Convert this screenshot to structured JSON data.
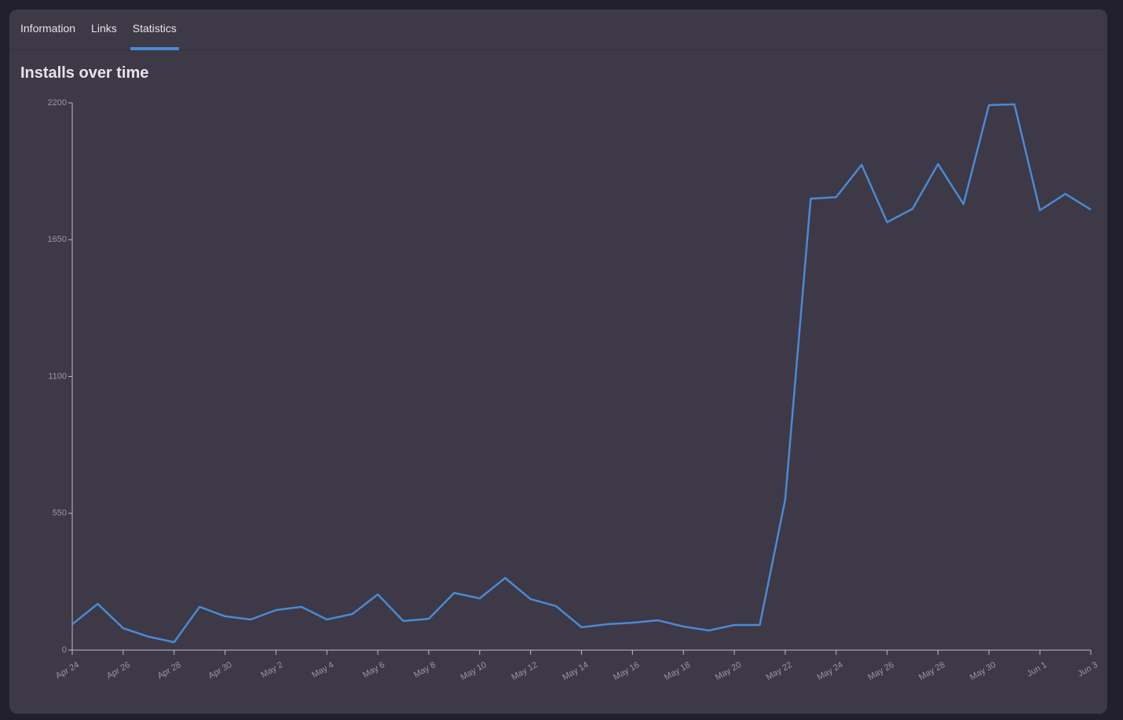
{
  "tabs": [
    "Information",
    "Links",
    "Statistics"
  ],
  "active_tab": 2,
  "chart_data": {
    "type": "line",
    "title": "Installs over time",
    "categories": [
      "Apr 24",
      null,
      "Apr 26",
      null,
      "Apr 28",
      null,
      "Apr 30",
      null,
      "May 2",
      null,
      "May 4",
      null,
      "May 6",
      null,
      "May 8",
      null,
      "May 10",
      null,
      "May 12",
      null,
      "May 14",
      null,
      "May 16",
      null,
      "May 18",
      null,
      "May 20",
      null,
      "May 22",
      null,
      "May 24",
      null,
      "May 26",
      null,
      "May 28",
      null,
      "May 30",
      null,
      "Jun 1",
      null,
      "Jun 3"
    ],
    "values": [
      104,
      186,
      88,
      54,
      32,
      174,
      136,
      123,
      161,
      174,
      123,
      145,
      224,
      117,
      126,
      230,
      208,
      290,
      205,
      177,
      92,
      104,
      110,
      120,
      95,
      79,
      101,
      101,
      606,
      1815,
      1821,
      1951,
      1720,
      1774,
      1954,
      1793,
      2191,
      2194,
      1768,
      1834,
      1771
    ],
    "color": "#4a8ad4",
    "ylim": [
      0,
      2200
    ],
    "yticks": [
      0,
      550,
      1100,
      1650,
      2200
    ]
  }
}
